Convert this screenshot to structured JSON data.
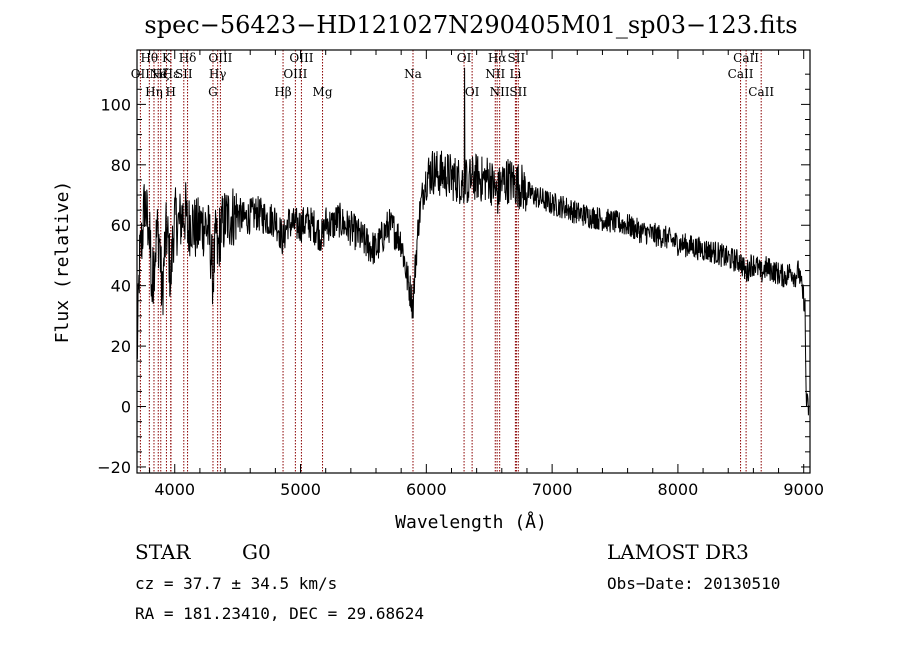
{
  "chart_data": {
    "type": "line",
    "title": "spec−56423−HD121027N290405M01_sp03−123.fits",
    "xlabel": "Wavelength (Å)",
    "ylabel": "Flux (relative)",
    "xlim": [
      3700,
      9050
    ],
    "ylim": [
      -22,
      118
    ],
    "xticks": [
      4000,
      5000,
      6000,
      7000,
      8000,
      9000
    ],
    "yticks": [
      -20,
      0,
      20,
      40,
      60,
      80,
      100
    ],
    "ytick_labels": [
      "−20",
      "0",
      "20",
      "40",
      "60",
      "80",
      "100"
    ],
    "grid": false,
    "line_color": "#000000",
    "marker_color": "#8b0000",
    "spectral_lines": [
      {
        "wavelength": 3798,
        "label": "Hθ",
        "tier": 1
      },
      {
        "wavelength": 3727,
        "label": "OII",
        "tier": 2
      },
      {
        "wavelength": 3835,
        "label": "Hη",
        "tier": 3
      },
      {
        "wavelength": 3869,
        "label": "Ne",
        "tier": 2
      },
      {
        "wavelength": 3889,
        "label": "Hζ",
        "tier": 2
      },
      {
        "wavelength": 3934,
        "label": "K",
        "tier": 1
      },
      {
        "wavelength": 3970,
        "label": "Hε",
        "tier": 2
      },
      {
        "wavelength": 3968,
        "label": "H",
        "tier": 3
      },
      {
        "wavelength": 4072,
        "label": "SII",
        "tier": 2
      },
      {
        "wavelength": 4102,
        "label": "Hδ",
        "tier": 1
      },
      {
        "wavelength": 4304,
        "label": "G",
        "tier": 3
      },
      {
        "wavelength": 4341,
        "label": "Hγ",
        "tier": 2
      },
      {
        "wavelength": 4363,
        "label": "OIII",
        "tier": 1
      },
      {
        "wavelength": 4861,
        "label": "Hβ",
        "tier": 3
      },
      {
        "wavelength": 4959,
        "label": "OIII",
        "tier": 2
      },
      {
        "wavelength": 5007,
        "label": "OIII",
        "tier": 1
      },
      {
        "wavelength": 5175,
        "label": "Mg",
        "tier": 3
      },
      {
        "wavelength": 5894,
        "label": "Na",
        "tier": 2
      },
      {
        "wavelength": 6300,
        "label": "OI",
        "tier": 1
      },
      {
        "wavelength": 6364,
        "label": "OI",
        "tier": 3
      },
      {
        "wavelength": 6548,
        "label": "NII",
        "tier": 2
      },
      {
        "wavelength": 6563,
        "label": "Hα",
        "tier": 1
      },
      {
        "wavelength": 6583,
        "label": "NII",
        "tier": 3
      },
      {
        "wavelength": 6708,
        "label": "Li",
        "tier": 2
      },
      {
        "wavelength": 6716,
        "label": "SII",
        "tier": 1
      },
      {
        "wavelength": 6731,
        "label": "SII",
        "tier": 3
      },
      {
        "wavelength": 8498,
        "label": "CaII",
        "tier": 2
      },
      {
        "wavelength": 8542,
        "label": "CaII",
        "tier": 1
      },
      {
        "wavelength": 8662,
        "label": "CaII",
        "tier": 3
      }
    ],
    "spectrum_anchors": {
      "x": [
        3700,
        3720,
        3745,
        3760,
        3780,
        3800,
        3820,
        3840,
        3860,
        3880,
        3900,
        3920,
        3934,
        3950,
        3968,
        3985,
        4000,
        4030,
        4060,
        4090,
        4102,
        4130,
        4170,
        4210,
        4250,
        4280,
        4304,
        4330,
        4341,
        4360,
        4400,
        4450,
        4500,
        4550,
        4600,
        4650,
        4700,
        4750,
        4800,
        4861,
        4900,
        4950,
        5000,
        5050,
        5100,
        5175,
        5200,
        5250,
        5300,
        5350,
        5400,
        5450,
        5500,
        5550,
        5600,
        5650,
        5700,
        5750,
        5800,
        5850,
        5880,
        5894,
        5910,
        5940,
        5970,
        6000,
        6050,
        6100,
        6150,
        6200,
        6250,
        6300,
        6350,
        6400,
        6450,
        6500,
        6563,
        6600,
        6650,
        6700,
        6750,
        6800,
        6900,
        7000,
        7100,
        7200,
        7300,
        7400,
        7500,
        7600,
        7700,
        7800,
        7900,
        8000,
        8100,
        8200,
        8300,
        8400,
        8498,
        8542,
        8580,
        8620,
        8662,
        8700,
        8750,
        8800,
        8850,
        8900,
        8930,
        8960,
        8980,
        9000,
        9010,
        9020,
        9040
      ],
      "y": [
        15,
        48,
        58,
        68,
        62,
        58,
        40,
        50,
        58,
        55,
        35,
        52,
        58,
        54,
        40,
        56,
        62,
        60,
        63,
        64,
        58,
        62,
        58,
        60,
        60,
        55,
        42,
        58,
        50,
        58,
        62,
        63,
        64,
        62,
        63,
        64,
        63,
        62,
        62,
        55,
        61,
        60,
        60,
        61,
        60,
        56,
        61,
        60,
        62,
        60,
        59,
        57,
        55,
        53,
        52,
        56,
        60,
        58,
        55,
        42,
        37,
        33,
        45,
        62,
        70,
        76,
        78,
        77,
        77,
        76,
        75,
        74,
        75,
        76,
        75,
        76,
        70,
        74,
        75,
        74,
        73,
        71,
        69,
        67,
        66,
        64,
        63,
        62,
        61,
        60,
        58,
        57,
        56,
        54,
        53,
        52,
        51,
        49,
        48,
        44,
        47,
        47,
        44,
        46,
        45,
        44,
        43,
        45,
        43,
        45,
        40,
        36,
        33,
        2,
        -1
      ]
    }
  },
  "info": {
    "object_class": "STAR",
    "subclass": "G0",
    "survey": "LAMOST DR3",
    "redshift": "cz = 37.7 ± 34.5 km/s",
    "obs_date": "Obs−Date: 20130510",
    "coords": "RA = 181.23410, DEC =  29.68624"
  }
}
